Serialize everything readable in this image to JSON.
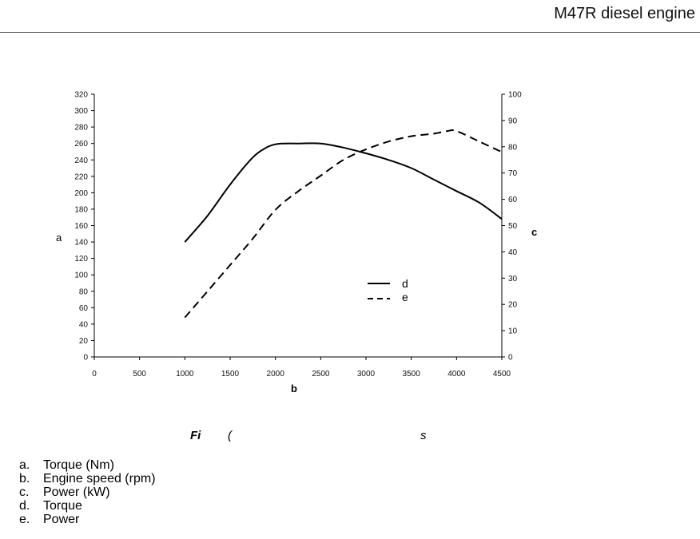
{
  "header": {
    "title": "M47R diesel engine"
  },
  "caption": {
    "start": "Fi",
    "mid": "(",
    "end": "s"
  },
  "legend_list": [
    {
      "key": "a.",
      "text": "Torque (Nm)"
    },
    {
      "key": "b.",
      "text": "Engine speed (rpm)"
    },
    {
      "key": "c.",
      "text": "Power (kW)"
    },
    {
      "key": "d.",
      "text": "Torque"
    },
    {
      "key": "e.",
      "text": "Power"
    }
  ],
  "chart_data": {
    "type": "line",
    "title": "",
    "xlabel": "b",
    "ylabel": "a",
    "y2label": "c",
    "xlim": [
      0,
      4500
    ],
    "ylim": [
      0,
      320
    ],
    "y2lim": [
      0,
      100
    ],
    "x_ticks": [
      0,
      500,
      1000,
      1500,
      2000,
      2500,
      3000,
      3500,
      4000,
      4500
    ],
    "y_ticks": [
      0,
      20,
      40,
      60,
      80,
      100,
      120,
      140,
      160,
      180,
      200,
      220,
      240,
      260,
      280,
      300,
      320
    ],
    "y2_ticks": [
      0,
      10,
      20,
      30,
      40,
      50,
      60,
      70,
      80,
      90,
      100
    ],
    "grid": false,
    "legend_placement": "center-right",
    "series": [
      {
        "name": "d",
        "axis": "left",
        "style": "solid",
        "x": [
          1000,
          1250,
          1500,
          1750,
          1900,
          2000,
          2100,
          2250,
          2500,
          2750,
          3000,
          3250,
          3500,
          3750,
          4000,
          4250,
          4500
        ],
        "y": [
          140,
          172,
          210,
          243,
          255,
          259,
          260,
          260,
          260,
          255,
          248,
          240,
          230,
          216,
          202,
          188,
          168
        ]
      },
      {
        "name": "e",
        "axis": "right",
        "style": "dashed",
        "x": [
          1000,
          1250,
          1500,
          1750,
          2000,
          2250,
          2500,
          2750,
          3000,
          3250,
          3500,
          3750,
          3900,
          4000,
          4250,
          4500
        ],
        "y": [
          15,
          25,
          35,
          45,
          56,
          63,
          69,
          75,
          79,
          82,
          84,
          85,
          86,
          86,
          82,
          78
        ]
      }
    ]
  }
}
